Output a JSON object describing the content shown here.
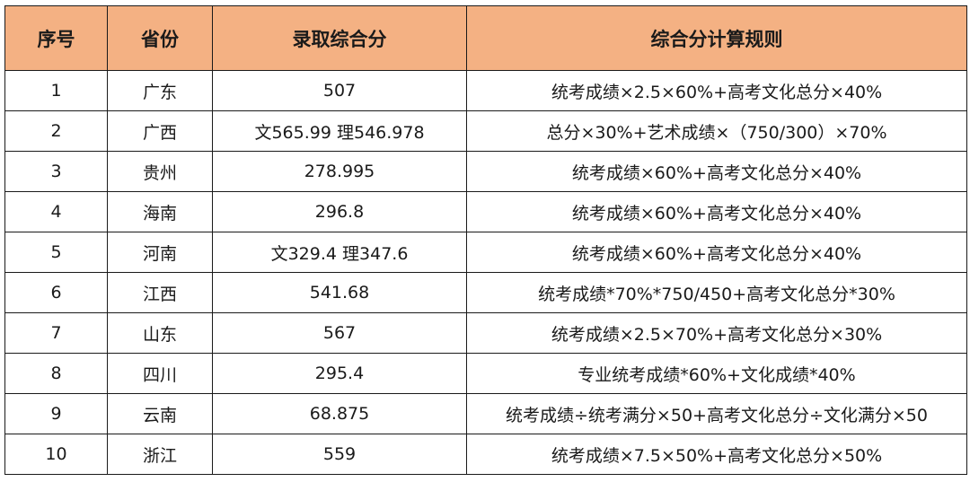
{
  "table": {
    "headers": {
      "no": "序号",
      "province": "省份",
      "score": "录取综合分",
      "rule": "综合分计算规则"
    },
    "rows": [
      {
        "no": "1",
        "province": "广东",
        "score": "507",
        "rule": "统考成绩×2.5×60%+高考文化总分×40%"
      },
      {
        "no": "2",
        "province": "广西",
        "score": "文565.99  理546.978",
        "rule": "总分×30%+艺术成绩×（750/300）×70%"
      },
      {
        "no": "3",
        "province": "贵州",
        "score": "278.995",
        "rule": "统考成绩×60%+高考文化总分×40%"
      },
      {
        "no": "4",
        "province": "海南",
        "score": "296.8",
        "rule": "统考成绩×60%+高考文化总分×40%"
      },
      {
        "no": "5",
        "province": "河南",
        "score": "文329.4  理347.6",
        "rule": "统考成绩×60%+高考文化总分×40%"
      },
      {
        "no": "6",
        "province": "江西",
        "score": "541.68",
        "rule": "统考成绩*70%*750/450+高考文化总分*30%"
      },
      {
        "no": "7",
        "province": "山东",
        "score": "567",
        "rule": "统考成绩×2.5×70%+高考文化总分×30%"
      },
      {
        "no": "8",
        "province": "四川",
        "score": "295.4",
        "rule": "专业统考成绩*60%+文化成绩*40%"
      },
      {
        "no": "9",
        "province": "云南",
        "score": "68.875",
        "rule": "统考成绩÷统考满分×50+高考文化总分÷文化满分×50"
      },
      {
        "no": "10",
        "province": "浙江",
        "score": "559",
        "rule": "统考成绩×7.5×50%+高考文化总分×50%"
      }
    ],
    "header_bg": "#f4b183",
    "border_color": "#1a1a1a"
  }
}
